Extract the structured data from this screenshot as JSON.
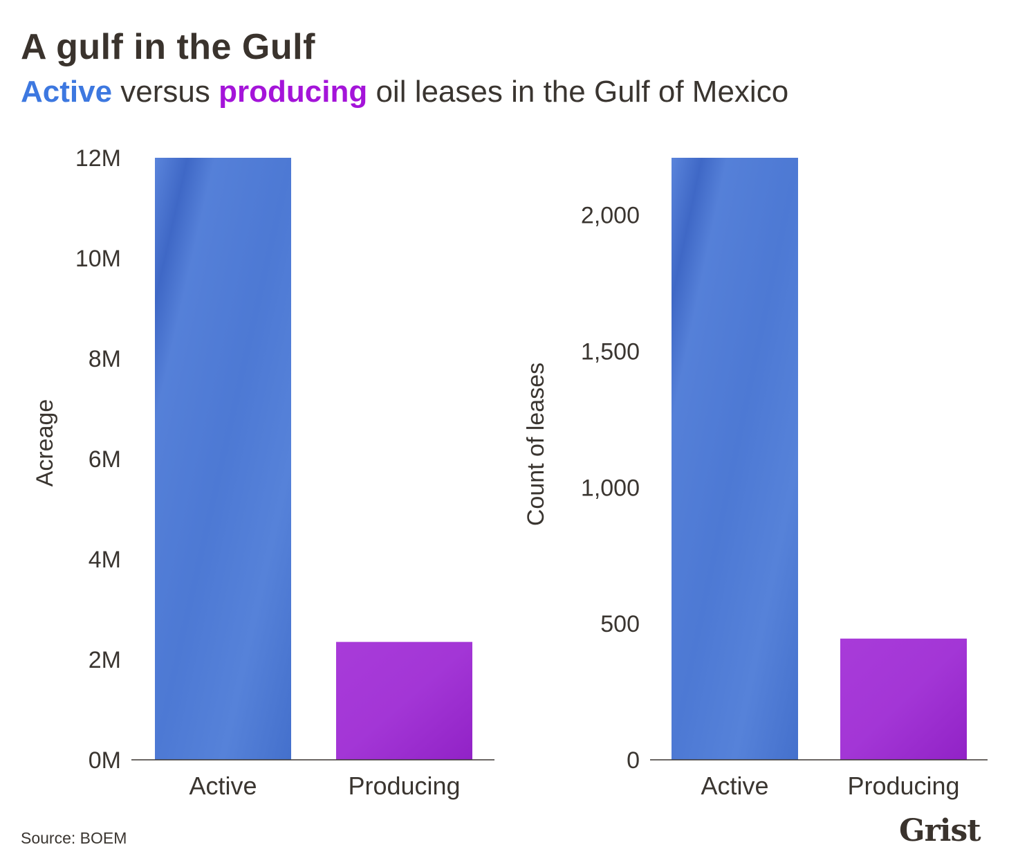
{
  "title": "A gulf in the Gulf",
  "subtitle": {
    "active_word": "Active",
    "middle": " versus ",
    "producing_word": "producing",
    "rest": " oil leases in the Gulf of Mexico"
  },
  "colors": {
    "active": "#4f7bd8",
    "active_dark": "#3d66c4",
    "producing": "#a235d6",
    "producing_dark": "#8e22c4",
    "text": "#3a3530",
    "axis": "#3a3530"
  },
  "source": "Source: BOEM",
  "brand": "Grist",
  "chart_data": [
    {
      "type": "bar",
      "title": "",
      "xlabel": "",
      "ylabel": "Acreage",
      "categories": [
        "Active",
        "Producing"
      ],
      "values": [
        12000000,
        2350000
      ],
      "ylim": [
        0,
        12000000
      ],
      "yticks": [
        0,
        2000000,
        4000000,
        6000000,
        8000000,
        10000000,
        12000000
      ],
      "ytick_labels": [
        "0M",
        "2M",
        "4M",
        "6M",
        "8M",
        "10M",
        "12M"
      ],
      "grid": false
    },
    {
      "type": "bar",
      "title": "",
      "xlabel": "",
      "ylabel": "Count of leases",
      "categories": [
        "Active",
        "Producing"
      ],
      "values": [
        2210,
        445
      ],
      "ylim": [
        0,
        2210
      ],
      "yticks": [
        0,
        500,
        1000,
        1500,
        2000
      ],
      "ytick_labels": [
        "0",
        "500",
        "1,000",
        "1,500",
        "2,000"
      ],
      "grid": false
    }
  ]
}
